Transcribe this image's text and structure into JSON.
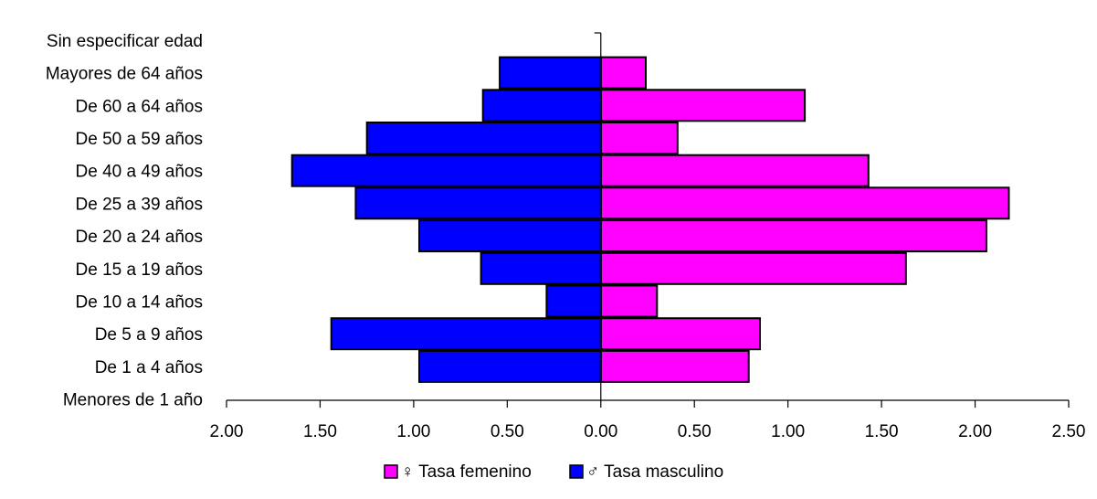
{
  "chart_data": {
    "type": "bar",
    "orientation": "horizontal-population-pyramid",
    "title": "",
    "xlabel": "",
    "ylabel": "",
    "categories": [
      "Sin especificar edad",
      "Mayores de 64 años",
      "De 60 a 64 años",
      "De 50 a 59 años",
      "De 40 a 49 años",
      "De 25 a 39 años",
      "De 20 a 24 años",
      "De 15 a 19 años",
      "De 10 a 14 años",
      "De 5 a 9 años",
      "De 1 a 4 años",
      "Menores de 1 año"
    ],
    "series": [
      {
        "name": "♀ Tasa femenino",
        "side": "right",
        "color": "#ff00ff",
        "values": [
          0,
          0.24,
          1.09,
          0.41,
          1.43,
          2.18,
          2.06,
          1.63,
          0.3,
          0.85,
          0.79,
          0
        ]
      },
      {
        "name": "♂ Tasa masculino",
        "side": "left",
        "color": "#0000ff",
        "values": [
          0,
          0.54,
          0.63,
          1.25,
          1.65,
          1.31,
          0.97,
          0.64,
          0.29,
          1.44,
          0.97,
          0
        ]
      }
    ],
    "xlim": [
      -2.0,
      2.5
    ],
    "xticks": [
      {
        "value": -2.0,
        "label": "2.00"
      },
      {
        "value": -1.5,
        "label": "1.50"
      },
      {
        "value": -1.0,
        "label": "1.00"
      },
      {
        "value": -0.5,
        "label": "0.50"
      },
      {
        "value": 0.0,
        "label": "0.00"
      },
      {
        "value": 0.5,
        "label": "0.50"
      },
      {
        "value": 1.0,
        "label": "1.00"
      },
      {
        "value": 1.5,
        "label": "1.50"
      },
      {
        "value": 2.0,
        "label": "2.00"
      },
      {
        "value": 2.5,
        "label": "2.50"
      }
    ],
    "grid": false,
    "legend": "bottom-center"
  }
}
